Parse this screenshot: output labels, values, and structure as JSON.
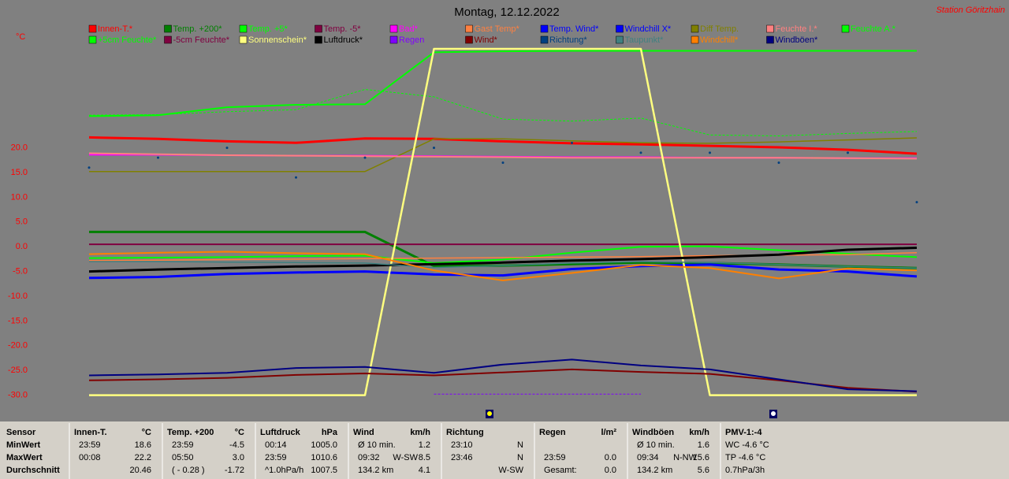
{
  "chart_data": {
    "type": "line",
    "title": "Montag, 12.12.2022",
    "station": "Station Göritzhain",
    "y_unit": "°C",
    "categories": [
      null,
      null,
      null,
      null,
      null,
      null,
      null,
      null,
      null,
      null,
      null,
      null,
      null
    ],
    "ylim": [
      -30,
      40
    ],
    "yticks": [
      {
        "value": 20,
        "label": "20.0"
      },
      {
        "value": 15,
        "label": "15.0"
      },
      {
        "value": 10,
        "label": "10.0"
      },
      {
        "value": 5,
        "label": "5.0"
      },
      {
        "value": 0,
        "label": "0.0"
      },
      {
        "value": -5,
        "label": "-5.0"
      },
      {
        "value": -10,
        "label": "-10.0"
      },
      {
        "value": -15,
        "label": "-15.0"
      },
      {
        "value": -20,
        "label": "-20.0"
      },
      {
        "value": -25,
        "label": "-25.0"
      },
      {
        "value": -30,
        "label": "-30.0"
      }
    ],
    "grid": false,
    "series": [
      {
        "name": "Innen-T.*",
        "color": "#ff0000",
        "width": 3,
        "values": [
          22.1,
          21.8,
          21.3,
          21.0,
          21.9,
          21.8,
          21.3,
          20.9,
          20.7,
          20.4,
          20.1,
          19.6,
          18.8
        ]
      },
      {
        "name": "Temp. +200*",
        "color": "#008000",
        "width": 3,
        "values": [
          3.0,
          3.0,
          3.0,
          3.0,
          3.0,
          -3.9,
          -3.8,
          -3.5,
          -3.2,
          -3.3,
          -3.6,
          -4.0,
          -4.3
        ]
      },
      {
        "name": "Temp. +5*",
        "color": "#00ff00",
        "width": 2,
        "values": [
          -2.3,
          -2.2,
          -2.1,
          -1.9,
          -1.8,
          -3.3,
          -2.6,
          -1.2,
          0.0,
          0.1,
          -0.7,
          -1.4,
          -2.1
        ]
      },
      {
        "name": "Temp. -5*",
        "color": "#800040",
        "width": 2,
        "values": [
          0.5,
          0.5,
          0.5,
          0.5,
          0.5,
          0.5,
          0.5,
          0.5,
          0.5,
          0.5,
          0.5,
          0.5,
          0.5
        ]
      },
      {
        "name": "Bad*",
        "color": "#ff00ff",
        "width": 2,
        "values": [
          18.6,
          18.6,
          18.5,
          18.4,
          18.4,
          18.3,
          18.2,
          18.1,
          18.1,
          18.0,
          18.0,
          17.9,
          17.9
        ]
      },
      {
        "name": "Gast Temp*",
        "color": "#ff8040",
        "width": 1.5,
        "values": [
          -2.8,
          -2.7,
          -2.6,
          -2.5,
          -2.4,
          -2.3,
          -2.2,
          -2.1,
          -2.0,
          -1.8,
          -1.7,
          -1.6,
          -1.2
        ]
      },
      {
        "name": "Temp. Wind*",
        "color": "#0000ff",
        "width": 3,
        "values": [
          -6.3,
          -6.1,
          -5.5,
          -5.2,
          -5.0,
          -5.6,
          -5.8,
          -4.5,
          -3.9,
          -3.6,
          -4.6,
          -5.0,
          -6.0
        ]
      },
      {
        "name": "Windchill X*",
        "color": "#0000ff",
        "width": 1.5,
        "values": [
          null,
          null,
          null,
          null,
          null,
          null,
          null,
          null,
          null,
          null,
          null,
          null,
          null
        ]
      },
      {
        "name": "Diff Temp.",
        "color": "#808000",
        "width": 1.5,
        "values": [
          15.2,
          15.2,
          15.2,
          15.2,
          15.2,
          21.8,
          21.8,
          21.4,
          21.0,
          20.9,
          21.2,
          21.6,
          22.0
        ]
      },
      {
        "name": "Feuchte I.*",
        "color": "#ff8080",
        "width": 2,
        "values": [
          18.9,
          18.7,
          18.5,
          18.4,
          18.3,
          18.2,
          18.1,
          18.0,
          18.0,
          18.0,
          18.0,
          17.9,
          17.8
        ]
      },
      {
        "name": "Feuchte A.*",
        "color": "#00ff00",
        "width": 1,
        "dash": true,
        "values": [
          26.6,
          26.7,
          27.3,
          27.7,
          31.8,
          30.3,
          25.8,
          25.4,
          26.0,
          22.6,
          22.4,
          22.9,
          23.3
        ]
      },
      {
        "name": "+5cm Feuchte*",
        "color": "#00ff00",
        "width": 2,
        "values": [
          26.4,
          26.6,
          28.2,
          28.7,
          28.8,
          39.3,
          39.5,
          39.6,
          39.6,
          39.6,
          39.6,
          39.6,
          39.6
        ]
      },
      {
        "name": "-5cm Feuchte*",
        "color": "#800040",
        "width": 1.5,
        "values": [
          null,
          null,
          null,
          null,
          null,
          null,
          null,
          null,
          null,
          null,
          null,
          null,
          null
        ]
      },
      {
        "name": "Sonnenschein*",
        "color": "#ffff80",
        "width": 2.5,
        "values": [
          -30,
          -30,
          -30,
          -30,
          -30,
          40,
          40,
          40,
          40,
          -30,
          -30,
          -30,
          -30
        ]
      },
      {
        "name": "Luftdruck*",
        "color": "#000000",
        "width": 3,
        "values": [
          -5.0,
          -4.6,
          -4.3,
          -4.0,
          -3.8,
          -3.5,
          -3.2,
          -2.8,
          -2.5,
          -2.1,
          -1.6,
          -0.6,
          -0.2
        ]
      },
      {
        "name": "Regen",
        "color": "#8000ff",
        "width": 1,
        "dash": true,
        "values": [
          null,
          null,
          null,
          null,
          null,
          -29.8,
          -29.8,
          -29.8,
          -29.8,
          null,
          null,
          null,
          null
        ]
      },
      {
        "name": "Wind*",
        "color": "#800000",
        "width": 2,
        "values": [
          -27.0,
          -26.8,
          -26.5,
          -25.9,
          -25.6,
          -26.0,
          -25.4,
          -24.8,
          -25.3,
          -25.7,
          -27.0,
          -28.5,
          -29.3
        ]
      },
      {
        "name": "Richtung*",
        "color": "#004080",
        "line": false,
        "values": [
          16,
          18,
          20,
          14,
          18,
          20,
          17,
          21,
          19,
          19,
          17,
          19,
          9
        ]
      },
      {
        "name": "Taupunkt*",
        "color": "#408080",
        "width": 1.5,
        "values": [
          -3.0,
          -3.0,
          -3.1,
          -3.2,
          -3.3,
          -4.2,
          -3.8,
          -3.3,
          -3.0,
          -3.2,
          -3.6,
          -4.0,
          -4.3
        ]
      },
      {
        "name": "Windchill*",
        "color": "#ff8000",
        "width": 2,
        "values": [
          -1.5,
          -1.2,
          -1.0,
          -1.3,
          -1.5,
          -4.8,
          -6.8,
          -5.3,
          -3.7,
          -4.3,
          -6.4,
          -4.4,
          -4.8
        ]
      },
      {
        "name": "Windböen*",
        "color": "#000080",
        "width": 2,
        "values": [
          -26.0,
          -25.8,
          -25.5,
          -24.5,
          -24.3,
          -25.5,
          -23.8,
          -22.8,
          -24.0,
          -24.8,
          -26.8,
          -28.8,
          -29.2
        ]
      }
    ]
  },
  "table": {
    "header": [
      [
        "Sensor"
      ],
      [
        "Innen-T.",
        "°C"
      ],
      [
        "Temp. +200",
        "°C"
      ],
      [
        "Luftdruck",
        "hPa"
      ],
      [
        "Wind",
        "km/h"
      ],
      [
        "Richtung"
      ],
      [
        "Regen",
        "l/m²"
      ],
      [
        "Windböen",
        "km/h"
      ],
      [
        "PMV-1:-4"
      ]
    ],
    "rows": [
      {
        "label": "MinWert",
        "cells": [
          [
            "23:59",
            "18.6"
          ],
          [
            "23:59",
            "-4.5"
          ],
          [
            "00:14",
            "1005.0"
          ],
          [
            "Ø 10 min.",
            "1.2"
          ],
          [
            "23:10",
            "N"
          ],
          [],
          [
            "Ø 10 min.",
            "1.6"
          ],
          [
            "WC -4.6 °C"
          ]
        ]
      },
      {
        "label": "MaxWert",
        "cells": [
          [
            "00:08",
            "22.2"
          ],
          [
            "05:50",
            "3.0"
          ],
          [
            "23:59",
            "1010.6"
          ],
          [
            "09:32",
            "W-SW",
            "8.5"
          ],
          [
            "23:46",
            "N"
          ],
          [
            "23:59",
            "0.0"
          ],
          [
            "09:34",
            "N-NW",
            "15.6"
          ],
          [
            "TP -4.6 °C"
          ]
        ]
      },
      {
        "label": "Durchschnitt",
        "cells": [
          [
            "20.46"
          ],
          [
            "( - 0.28 )",
            "-1.72"
          ],
          [
            "^1.0hPa/h",
            "1007.5"
          ],
          [
            "134.2 km",
            "4.1"
          ],
          [
            "W-SW"
          ],
          [
            "Gesamt:",
            "0.0"
          ],
          [
            "134.2 km",
            "5.6"
          ],
          [
            "0.7hPa/3h"
          ]
        ]
      }
    ]
  }
}
